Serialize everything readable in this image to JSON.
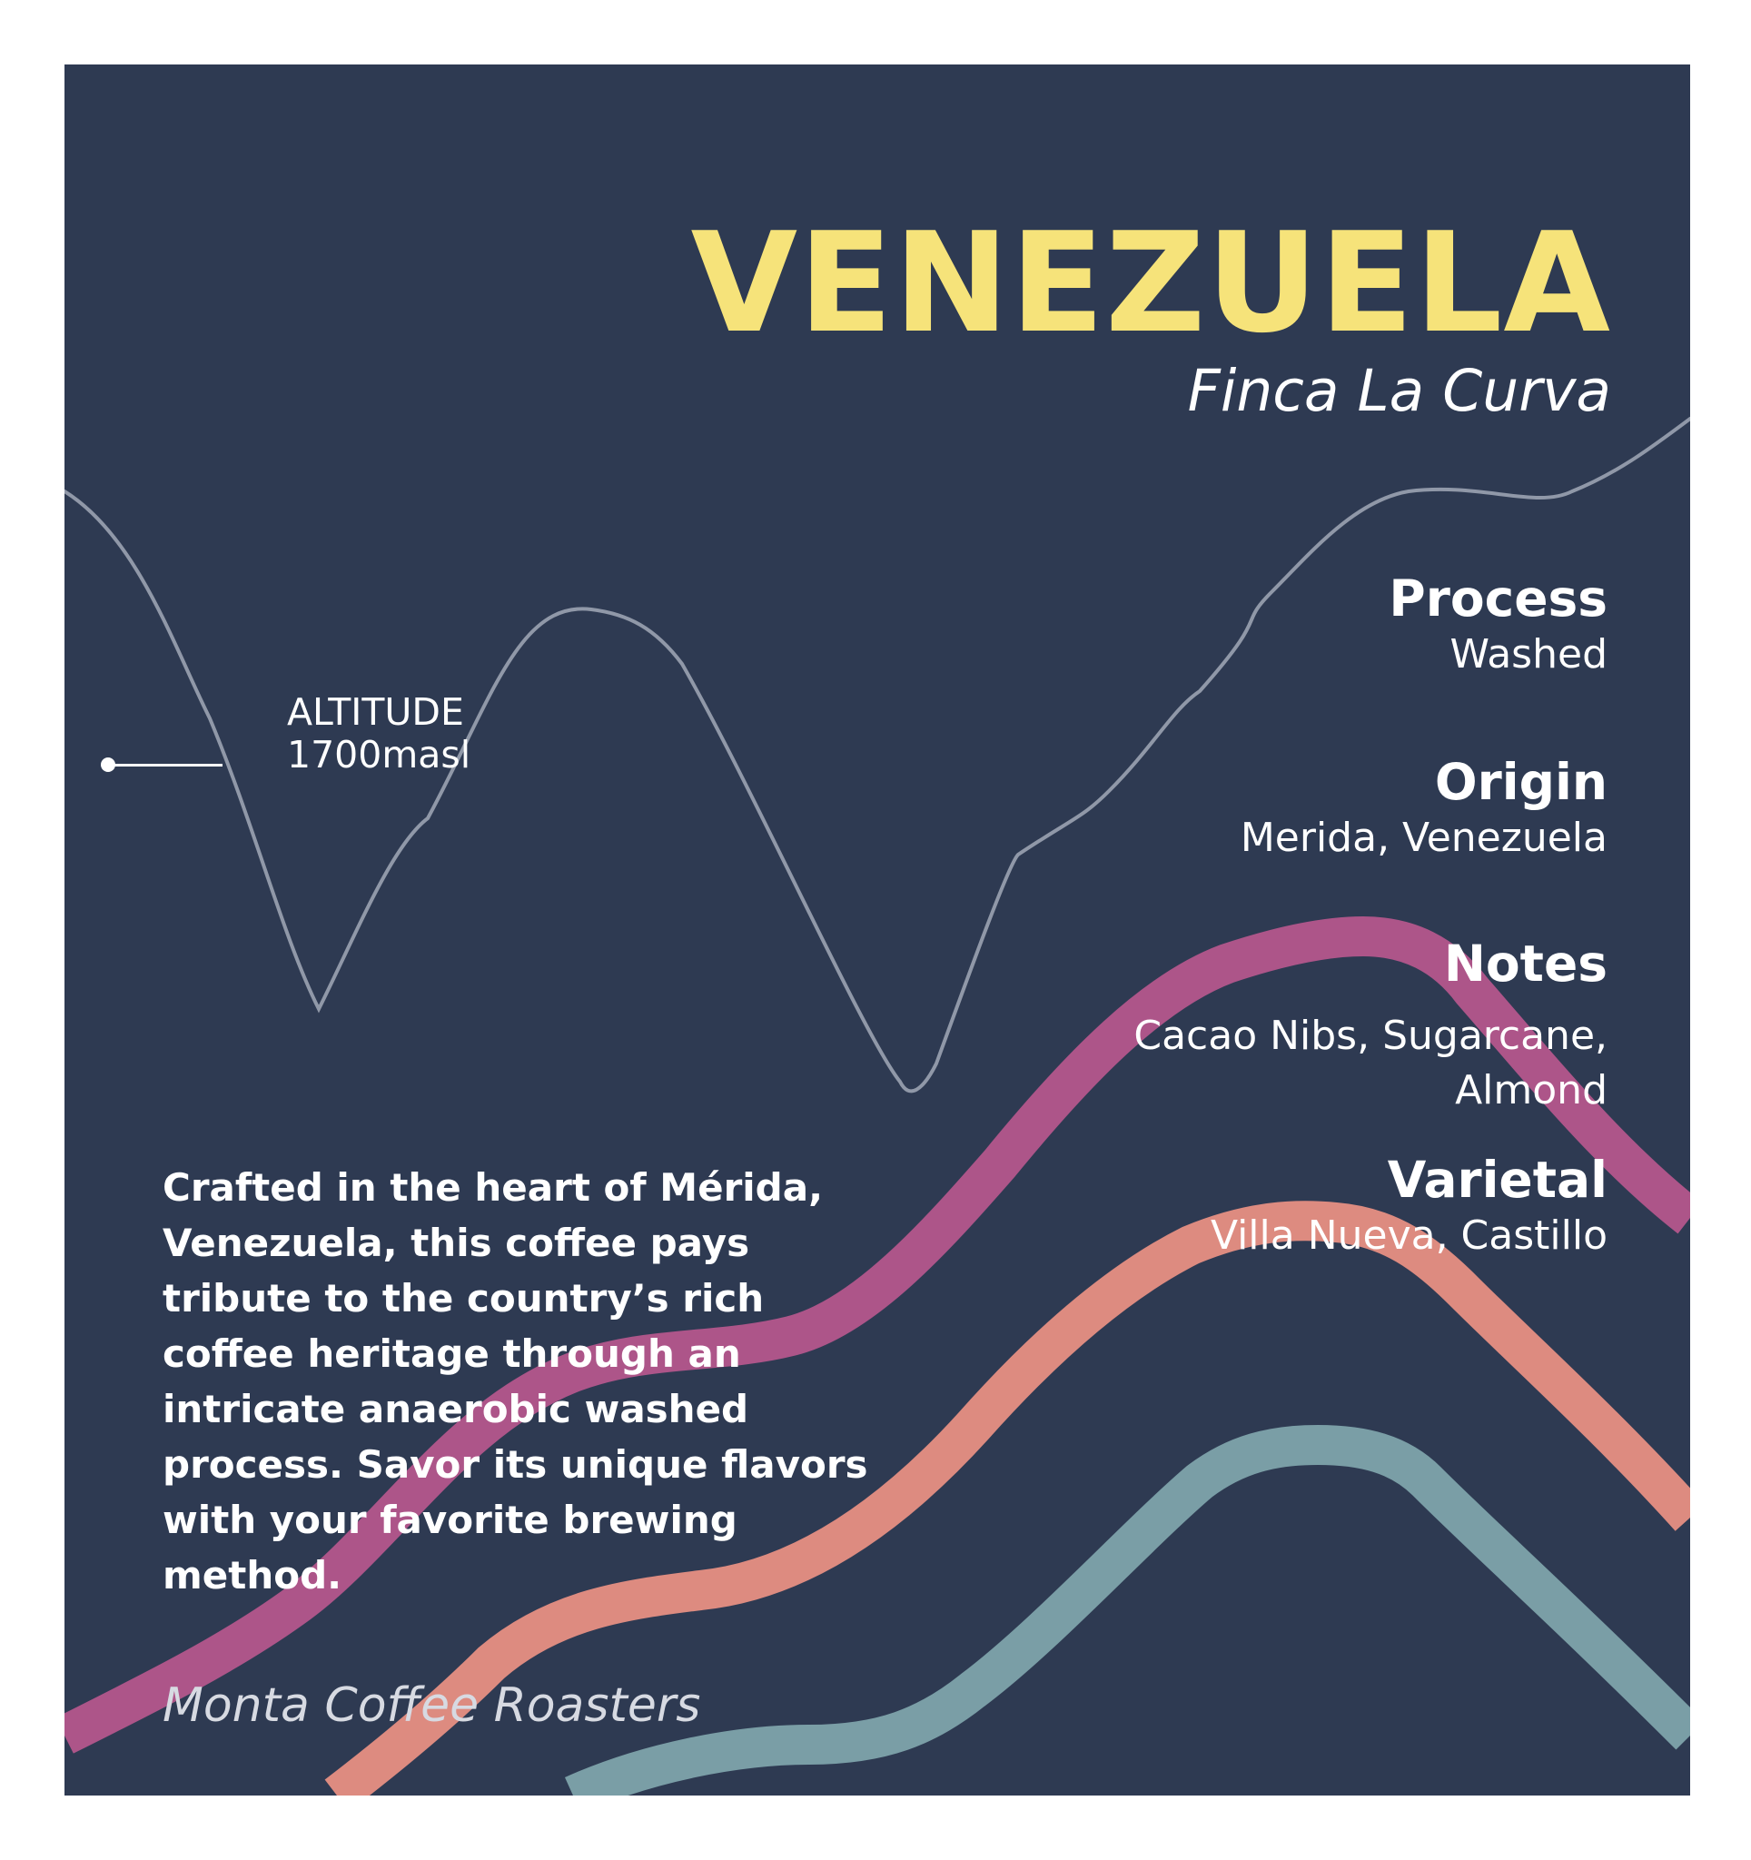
{
  "colors": {
    "background": "#2e3a52",
    "title": "#f6e37a",
    "text": "#ffffff",
    "wave_magenta": "#ad5589",
    "wave_salmon": "#dd8b80",
    "wave_teal": "#7a9ea6",
    "altitude_contour": "#9098a8"
  },
  "header": {
    "title": "VENEZUELA",
    "subtitle": "Finca La Curva"
  },
  "altitude": {
    "label": "ALTITUDE",
    "value": "1700masl"
  },
  "details": [
    {
      "label": "Process",
      "value": "Washed"
    },
    {
      "label": "Origin",
      "value": "Merida, Venezuela"
    },
    {
      "label": "Notes",
      "value_line_1": "Cacao Nibs, Sugarcane,",
      "value_line_2": "Almond"
    },
    {
      "label": "Varietal",
      "value": "Villa Nueva, Castillo"
    }
  ],
  "description": "Crafted in the heart of Mérida, Venezuela, this coffee pays tribute to the country’s rich coffee heritage through an intricate anaerobic washed process. Savor its unique flavors with your favorite brewing method.",
  "footer": {
    "roaster": "Monta Coffee Roasters"
  }
}
